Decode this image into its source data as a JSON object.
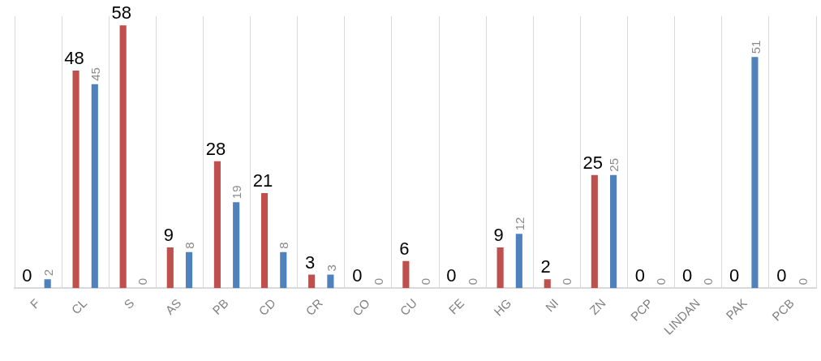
{
  "chart_data": {
    "type": "bar",
    "categories": [
      "F",
      "CL",
      "S",
      "AS",
      "PB",
      "CD",
      "CR",
      "CO",
      "CU",
      "FE",
      "HG",
      "NI",
      "ZN",
      "PCP",
      "LINDAN",
      "PAK",
      "PCB"
    ],
    "series": [
      {
        "color": "#c0504d",
        "values": [
          0,
          48,
          58,
          9,
          28,
          21,
          3,
          0,
          6,
          0,
          9,
          2,
          25,
          0,
          0,
          0,
          0
        ]
      },
      {
        "color": "#4f81bd",
        "values": [
          2,
          45,
          0,
          8,
          19,
          8,
          3,
          0,
          0,
          0,
          12,
          0,
          25,
          0,
          0,
          51,
          0
        ]
      }
    ],
    "data_labels": true,
    "grid": "x",
    "legend": false
  }
}
